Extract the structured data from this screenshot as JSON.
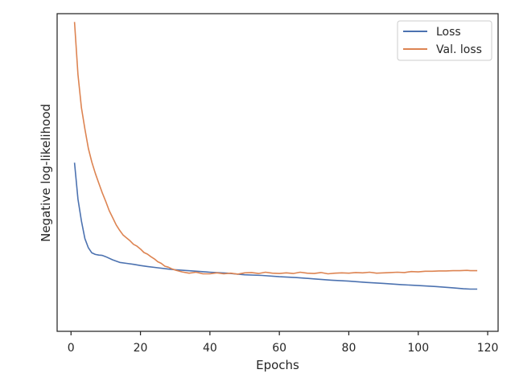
{
  "chart_data": {
    "type": "line",
    "title": "",
    "xlabel": "Epochs",
    "ylabel": "Negative log-likelihood",
    "xlim": [
      -4,
      123
    ],
    "ylim": [
      0,
      1
    ],
    "y_ticks_shown": false,
    "x_ticks": [
      0,
      20,
      40,
      60,
      80,
      100,
      120
    ],
    "x_tick_labels": [
      "0",
      "20",
      "40",
      "60",
      "80",
      "100",
      "120"
    ],
    "grid": false,
    "legend_position": "upper right",
    "series": [
      {
        "name": "Loss",
        "color": "#4c72b0",
        "x": [
          1,
          2,
          3,
          4,
          5,
          6,
          7,
          8,
          9,
          10,
          12,
          14,
          16,
          18,
          20,
          22,
          25,
          28,
          30,
          35,
          40,
          45,
          50,
          55,
          60,
          65,
          70,
          75,
          80,
          85,
          90,
          95,
          100,
          105,
          110,
          113,
          115,
          117
        ],
        "y": [
          0.531,
          0.416,
          0.347,
          0.292,
          0.263,
          0.247,
          0.242,
          0.24,
          0.239,
          0.235,
          0.225,
          0.217,
          0.214,
          0.211,
          0.207,
          0.204,
          0.2,
          0.196,
          0.194,
          0.19,
          0.186,
          0.183,
          0.178,
          0.176,
          0.172,
          0.169,
          0.165,
          0.161,
          0.158,
          0.154,
          0.151,
          0.147,
          0.144,
          0.141,
          0.137,
          0.134,
          0.133,
          0.133
        ]
      },
      {
        "name": "Val. loss",
        "color": "#dd8452",
        "x": [
          1,
          2,
          3,
          4,
          5,
          6,
          7,
          8,
          9,
          10,
          11,
          12,
          13,
          14,
          15,
          16,
          17,
          18,
          19,
          20,
          21,
          22,
          23,
          24,
          25,
          26,
          27,
          28,
          29,
          30,
          32,
          34,
          36,
          38,
          40,
          42,
          44,
          46,
          48,
          50,
          52,
          54,
          56,
          58,
          60,
          62,
          64,
          66,
          68,
          70,
          72,
          74,
          76,
          78,
          80,
          82,
          84,
          86,
          88,
          90,
          92,
          94,
          96,
          98,
          100,
          102,
          104,
          106,
          108,
          110,
          112,
          114,
          115,
          117
        ],
        "y": [
          0.974,
          0.808,
          0.704,
          0.637,
          0.576,
          0.533,
          0.497,
          0.466,
          0.436,
          0.409,
          0.38,
          0.358,
          0.335,
          0.318,
          0.303,
          0.294,
          0.285,
          0.274,
          0.268,
          0.259,
          0.248,
          0.243,
          0.235,
          0.228,
          0.219,
          0.214,
          0.205,
          0.202,
          0.197,
          0.193,
          0.187,
          0.183,
          0.186,
          0.181,
          0.181,
          0.184,
          0.181,
          0.183,
          0.18,
          0.184,
          0.185,
          0.182,
          0.186,
          0.183,
          0.182,
          0.184,
          0.182,
          0.186,
          0.183,
          0.182,
          0.185,
          0.181,
          0.183,
          0.184,
          0.183,
          0.185,
          0.184,
          0.186,
          0.183,
          0.184,
          0.185,
          0.186,
          0.185,
          0.188,
          0.187,
          0.189,
          0.189,
          0.19,
          0.19,
          0.191,
          0.191,
          0.192,
          0.191,
          0.191
        ]
      }
    ]
  }
}
